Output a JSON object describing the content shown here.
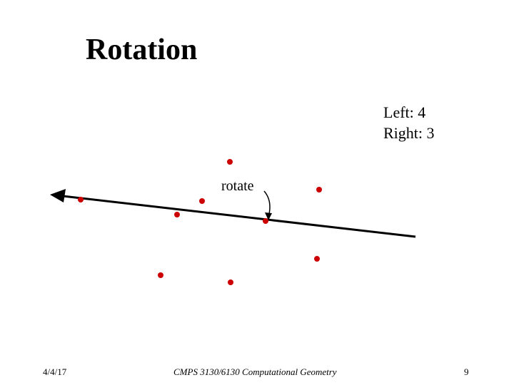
{
  "slide": {
    "title": "Rotation",
    "left_count": "Left: 4",
    "right_count": "Right: 3"
  },
  "diagram": {
    "annotation": "rotate",
    "point_color": "#cc0000",
    "line_color": "#000000"
  },
  "footer": {
    "date": "4/4/17",
    "course": "CMPS 3130/6130 Computational Geometry",
    "page": "9"
  }
}
